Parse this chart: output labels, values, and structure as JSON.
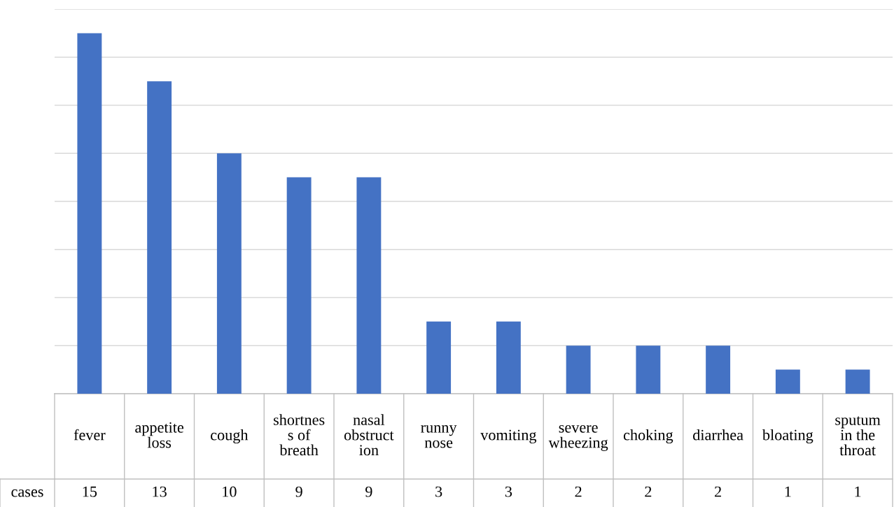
{
  "chart_data": {
    "type": "bar",
    "categories": [
      "fever",
      "appetite loss",
      "cough",
      "shortness of breath",
      "nasal obstruction",
      "runny nose",
      "vomiting",
      "severe wheezing",
      "choking",
      "diarrhea",
      "bloating",
      "sputum in the throat"
    ],
    "series": [
      {
        "name": "cases",
        "color": "#4472c4",
        "values": [
          15,
          13,
          10,
          9,
          9,
          3,
          3,
          2,
          2,
          2,
          1,
          1
        ]
      }
    ],
    "ylim": [
      0,
      16
    ],
    "yticks": [
      {
        "value": 0,
        "label": null
      },
      {
        "value": 2,
        "label": null
      },
      {
        "value": 4,
        "label": null
      },
      {
        "value": 6,
        "label": null
      },
      {
        "value": 8,
        "label": null
      },
      {
        "value": 10,
        "label": null
      },
      {
        "value": 12,
        "label": null
      },
      {
        "value": 14,
        "label": null
      },
      {
        "value": 16,
        "label": null
      }
    ],
    "grid": "y",
    "data_labels": true,
    "legend": false
  }
}
